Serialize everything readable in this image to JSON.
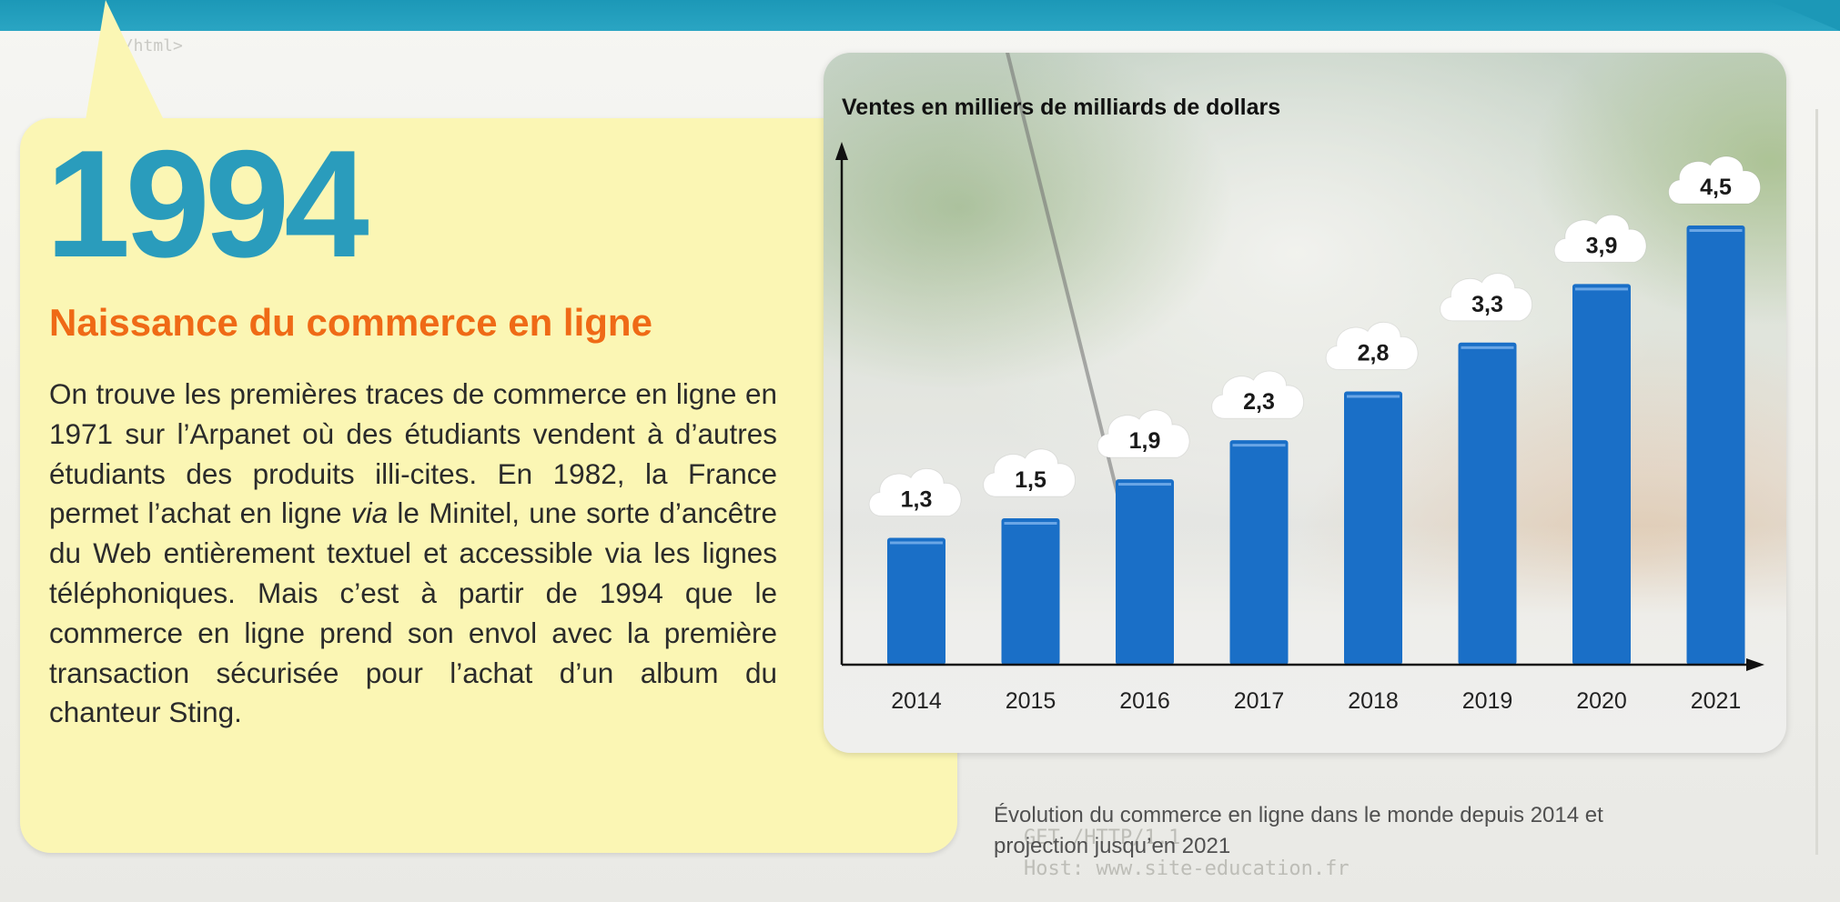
{
  "card": {
    "year": "1994",
    "subtitle": "Naissance du commerce en ligne",
    "body_part1": "On trouve les premières traces de commerce en ligne en 1971 sur l’Arpanet où des étudiants vendent à d’autres étudiants des produits illi-cites. En 1982, la France permet l’achat en ligne ",
    "body_italic": "via",
    "body_part2": " le Minitel, une sorte d’ancêtre du Web entièrement textuel et accessible via les lignes téléphoniques. Mais c’est à partir de 1994 que le commerce en ligne prend son envol avec la première transaction sécurisée pour l’achat d’un album du chanteur Sting."
  },
  "background": {
    "code_tag": "</html>",
    "code_lines": [
      "GET /HTTP/1.1",
      "Host: www.site-education.fr"
    ]
  },
  "caption": "Évolution du commerce en ligne dans le monde depuis 2014 et projection jusqu’en 2021",
  "colors": {
    "teal": "#2a9cbc",
    "orange": "#ef6a16",
    "card_yellow": "#fbf6b4",
    "bar_blue": "#1a6fc7"
  },
  "chart_data": {
    "type": "bar",
    "title": "Ventes en milliers de milliards de dollars",
    "xlabel": "",
    "ylabel": "",
    "categories": [
      "2014",
      "2015",
      "2016",
      "2017",
      "2018",
      "2019",
      "2020",
      "2021"
    ],
    "values": [
      1.3,
      1.5,
      1.9,
      2.3,
      2.8,
      3.3,
      3.9,
      4.5
    ],
    "value_labels": [
      "1,3",
      "1,5",
      "1,9",
      "2,3",
      "2,8",
      "3,3",
      "3,9",
      "4,5"
    ],
    "ylim": [
      0,
      4.5
    ],
    "grid": false,
    "legend": "none"
  }
}
